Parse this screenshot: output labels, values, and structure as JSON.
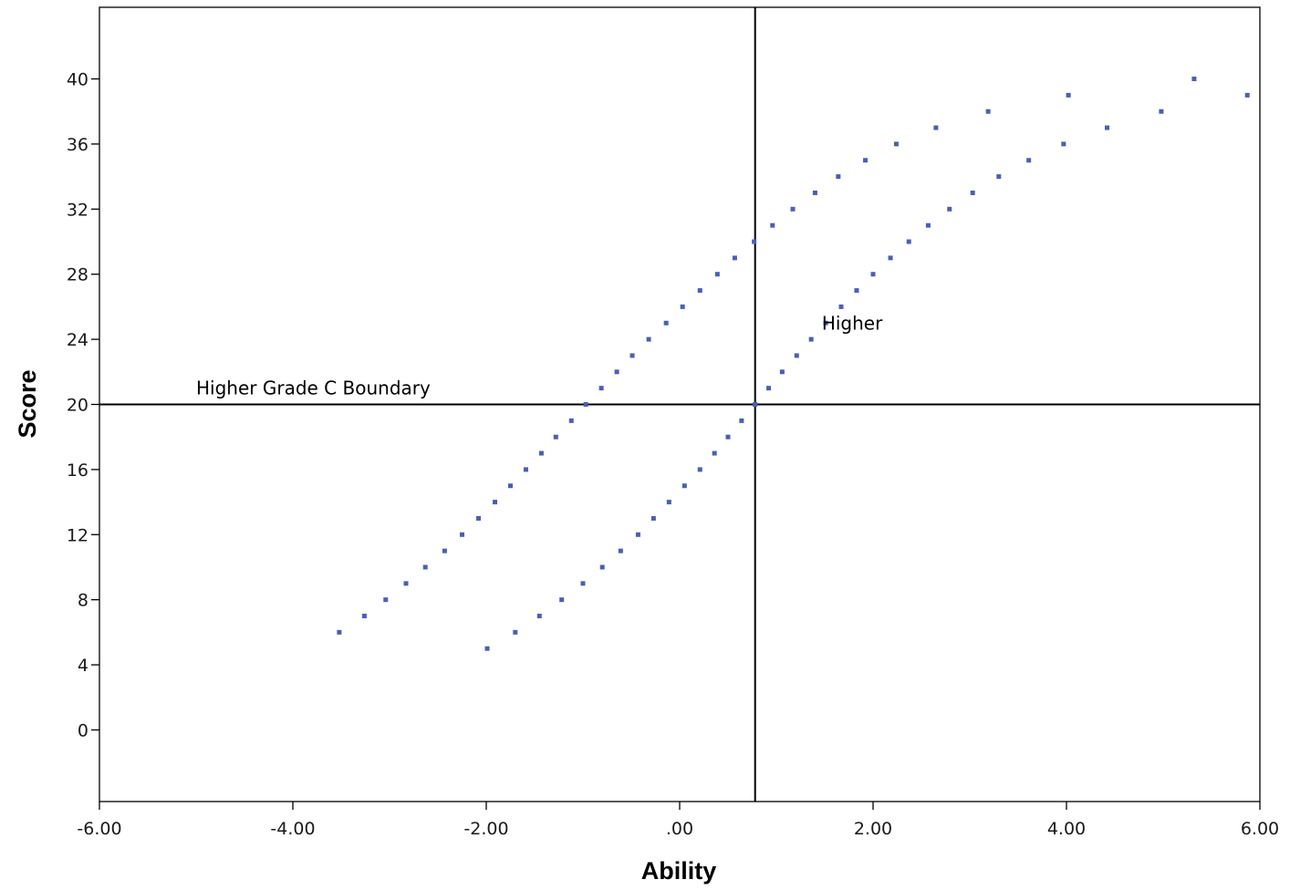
{
  "chart_data": {
    "type": "scatter",
    "xlabel": "Ability",
    "ylabel": "Score",
    "xlim": [
      -6,
      6
    ],
    "ylim": [
      -4.4,
      44.4
    ],
    "x_ticks": [
      {
        "value": -6,
        "label": "-6.00"
      },
      {
        "value": -4,
        "label": "-4.00"
      },
      {
        "value": -2,
        "label": "-2.00"
      },
      {
        "value": 0,
        "label": ".00"
      },
      {
        "value": 2,
        "label": "2.00"
      },
      {
        "value": 4,
        "label": "4.00"
      },
      {
        "value": 6,
        "label": "6.00"
      }
    ],
    "y_ticks": [
      {
        "value": 0,
        "label": "0"
      },
      {
        "value": 4,
        "label": "4"
      },
      {
        "value": 8,
        "label": "8"
      },
      {
        "value": 12,
        "label": "12"
      },
      {
        "value": 16,
        "label": "16"
      },
      {
        "value": 20,
        "label": "20"
      },
      {
        "value": 24,
        "label": "24"
      },
      {
        "value": 28,
        "label": "28"
      },
      {
        "value": 32,
        "label": "32"
      },
      {
        "value": 36,
        "label": "36"
      },
      {
        "value": 40,
        "label": "40"
      }
    ],
    "grid": false,
    "marker_color": "#4a5fb5",
    "series": [
      {
        "points": [
          [
            -3.52,
            6
          ],
          [
            -3.26,
            7
          ],
          [
            -3.04,
            8
          ],
          [
            -2.83,
            9
          ],
          [
            -2.63,
            10
          ],
          [
            -2.43,
            11
          ],
          [
            -2.25,
            12
          ],
          [
            -2.08,
            13
          ],
          [
            -1.91,
            14
          ],
          [
            -1.75,
            15
          ],
          [
            -1.59,
            16
          ],
          [
            -1.43,
            17
          ],
          [
            -1.28,
            18
          ],
          [
            -1.12,
            19
          ],
          [
            -0.97,
            20
          ],
          [
            -0.81,
            21
          ],
          [
            -0.65,
            22
          ],
          [
            -0.49,
            23
          ],
          [
            -0.32,
            24
          ],
          [
            -0.14,
            25
          ],
          [
            0.03,
            26
          ],
          [
            0.21,
            27
          ],
          [
            0.39,
            28
          ],
          [
            0.57,
            29
          ],
          [
            0.77,
            30
          ],
          [
            0.96,
            31
          ],
          [
            1.17,
            32
          ],
          [
            1.4,
            33
          ],
          [
            1.64,
            34
          ],
          [
            1.92,
            35
          ],
          [
            2.24,
            36
          ],
          [
            2.65,
            37
          ],
          [
            3.19,
            38
          ],
          [
            4.02,
            39
          ]
        ]
      },
      {
        "points": [
          [
            -1.99,
            5
          ],
          [
            -1.7,
            6
          ],
          [
            -1.45,
            7
          ],
          [
            -1.22,
            8
          ],
          [
            -1.0,
            9
          ],
          [
            -0.8,
            10
          ],
          [
            -0.61,
            11
          ],
          [
            -0.43,
            12
          ],
          [
            -0.27,
            13
          ],
          [
            -0.11,
            14
          ],
          [
            0.05,
            15
          ],
          [
            0.21,
            16
          ],
          [
            0.36,
            17
          ],
          [
            0.5,
            18
          ],
          [
            0.64,
            19
          ],
          [
            0.78,
            20
          ],
          [
            0.92,
            21
          ],
          [
            1.06,
            22
          ],
          [
            1.21,
            23
          ],
          [
            1.36,
            24
          ],
          [
            1.51,
            25
          ],
          [
            1.67,
            26
          ],
          [
            1.83,
            27
          ],
          [
            2.0,
            28
          ],
          [
            2.18,
            29
          ],
          [
            2.37,
            30
          ],
          [
            2.57,
            31
          ],
          [
            2.79,
            32
          ],
          [
            3.03,
            33
          ],
          [
            3.3,
            34
          ],
          [
            3.61,
            35
          ],
          [
            3.97,
            36
          ],
          [
            4.42,
            37
          ],
          [
            4.98,
            38
          ],
          [
            5.32,
            40
          ],
          [
            5.87,
            39
          ]
        ]
      }
    ],
    "reference_lines": [
      {
        "orientation": "horizontal",
        "value": 20
      },
      {
        "orientation": "vertical",
        "value": 0.78
      }
    ],
    "annotations": [
      {
        "text": "Higher Grade C Boundary",
        "x": -5.0,
        "y": 21.0
      },
      {
        "text": "Higher",
        "x": 1.47,
        "y": 25.0
      }
    ]
  }
}
